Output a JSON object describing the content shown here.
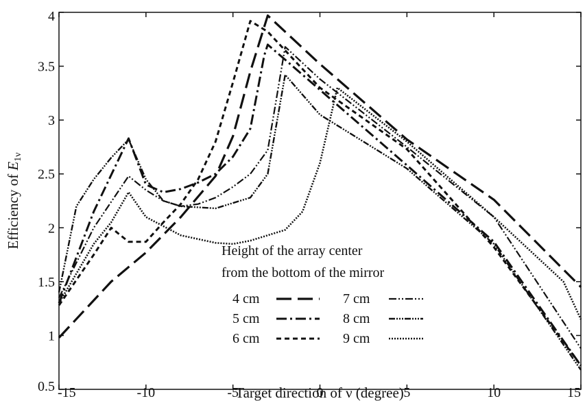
{
  "chart_data": {
    "type": "line",
    "title": "",
    "xlabel": "Target direction of ν (degree)",
    "ylabel_prefix": "Efficiency of ",
    "ylabel_symbol": "E",
    "ylabel_subscript": "1ν",
    "xlim": [
      -15,
      15
    ],
    "ylim": [
      0.5,
      4
    ],
    "x_ticks": [
      -15,
      -10,
      -5,
      0,
      5,
      10,
      15
    ],
    "x_tick_labels": [
      "-15",
      "-10",
      "-5",
      "0",
      "5",
      "10",
      "15"
    ],
    "y_ticks": [
      0.5,
      1,
      1.5,
      2,
      2.5,
      3,
      3.5,
      4
    ],
    "y_tick_labels": [
      "0.5",
      "1",
      "1.5",
      "2",
      "2.5",
      "3",
      "3.5",
      "4"
    ],
    "grid": false,
    "legend": {
      "title_line1": "Height of the array center",
      "title_line2": "from the bottom of the mirror",
      "placement": "bottom-center"
    },
    "series": [
      {
        "name": "4 cm",
        "dash": "long-dash",
        "x": [
          -15,
          -12,
          -10,
          -8,
          -6,
          -5,
          -4,
          -3,
          0,
          5,
          10,
          15
        ],
        "y": [
          0.98,
          1.5,
          1.77,
          2.1,
          2.48,
          2.85,
          3.45,
          3.97,
          3.52,
          2.82,
          2.26,
          1.45
        ]
      },
      {
        "name": "5 cm",
        "dash": "dash-dot",
        "x": [
          -15,
          -13,
          -11,
          -10,
          -9,
          -8,
          -7,
          -6,
          -5,
          -4,
          -3.2,
          -3,
          0,
          5,
          10,
          15
        ],
        "y": [
          1.3,
          2.15,
          2.83,
          2.4,
          2.33,
          2.36,
          2.42,
          2.5,
          2.66,
          2.92,
          3.6,
          3.7,
          3.28,
          2.58,
          1.87,
          0.72
        ]
      },
      {
        "name": "6 cm",
        "dash": "short-dash",
        "x": [
          -15,
          -13,
          -12,
          -11,
          -10,
          -9,
          -8,
          -7,
          -6,
          -5,
          -4,
          -3,
          0,
          5,
          10,
          15
        ],
        "y": [
          1.28,
          1.75,
          2.0,
          1.87,
          1.87,
          2.05,
          2.22,
          2.45,
          2.8,
          3.35,
          3.92,
          3.82,
          3.3,
          2.73,
          1.82,
          0.72
        ]
      },
      {
        "name": "7 cm",
        "dash": "dash-dot-dot",
        "x": [
          -15,
          -13,
          -11,
          -10,
          -9,
          -8,
          -7,
          -6,
          -5,
          -4,
          -3,
          -2,
          0,
          5,
          10,
          15
        ],
        "y": [
          1.35,
          2.0,
          2.48,
          2.35,
          2.25,
          2.2,
          2.22,
          2.28,
          2.38,
          2.5,
          2.72,
          3.68,
          3.38,
          2.75,
          2.1,
          0.88
        ]
      },
      {
        "name": "8 cm",
        "dash": "dense-dot-dash",
        "x": [
          -15,
          -14,
          -13,
          -12,
          -11,
          -10,
          -9,
          -8,
          -6,
          -4,
          -3,
          -2,
          0,
          5,
          10,
          15
        ],
        "y": [
          1.4,
          2.2,
          2.45,
          2.65,
          2.82,
          2.45,
          2.25,
          2.2,
          2.18,
          2.28,
          2.5,
          3.42,
          3.05,
          2.55,
          1.85,
          0.68
        ]
      },
      {
        "name": "9 cm",
        "dash": "dotted",
        "x": [
          -15,
          -13,
          -12,
          -11,
          -10,
          -8,
          -6,
          -5,
          -4,
          -2,
          -1,
          0,
          1,
          5,
          10,
          14,
          15
        ],
        "y": [
          1.3,
          1.85,
          2.05,
          2.33,
          2.1,
          1.93,
          1.86,
          1.85,
          1.88,
          1.98,
          2.15,
          2.6,
          3.3,
          2.8,
          2.1,
          1.5,
          1.15
        ]
      }
    ]
  }
}
